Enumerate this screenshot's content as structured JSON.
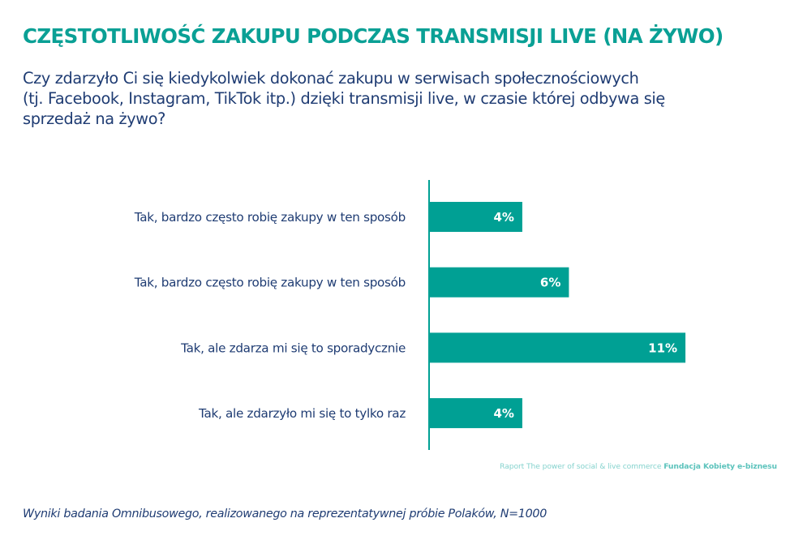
{
  "header": {
    "title": "CZĘSTOTLIWOŚĆ ZAKUPU PODCZAS TRANSMISJI LIVE (NA ŻYWO)",
    "question_lines": [
      "Czy zdarzyło Ci się kiedykolwiek dokonać zakupu w serwisach społecznościowych",
      "(tj. Facebook, Instagram, TikTok itp.) dzięki transmisji live, w czasie której odbywa się",
      "sprzedaż na żywo?"
    ]
  },
  "chart_data": {
    "type": "bar",
    "orientation": "horizontal",
    "title": "",
    "xlabel": "",
    "ylabel": "",
    "categories": [
      "Tak, bardzo często robię zakupy w ten sposób",
      "Tak, bardzo często robię zakupy w ten sposób",
      "Tak, ale zdarza mi się to sporadycznie",
      "Tak, ale zdarzyło mi się to tylko raz"
    ],
    "values": [
      4,
      6,
      11,
      4
    ],
    "value_labels": [
      "4%",
      "6%",
      "11%",
      "4%"
    ],
    "unit": "%",
    "xlim": [
      0,
      15
    ],
    "grid": false,
    "legend": "none",
    "bar_color": "#00a094",
    "axis_color": "#00a094",
    "label_color": "#1f3c73"
  },
  "source": {
    "prefix": "Raport The power of social & live commerce ",
    "org": "Fundacja Kobiety e-biznesu"
  },
  "footnote": "Wyniki badania Omnibusowego, realizowanego na reprezentatywnej próbie Polaków, N=1000"
}
